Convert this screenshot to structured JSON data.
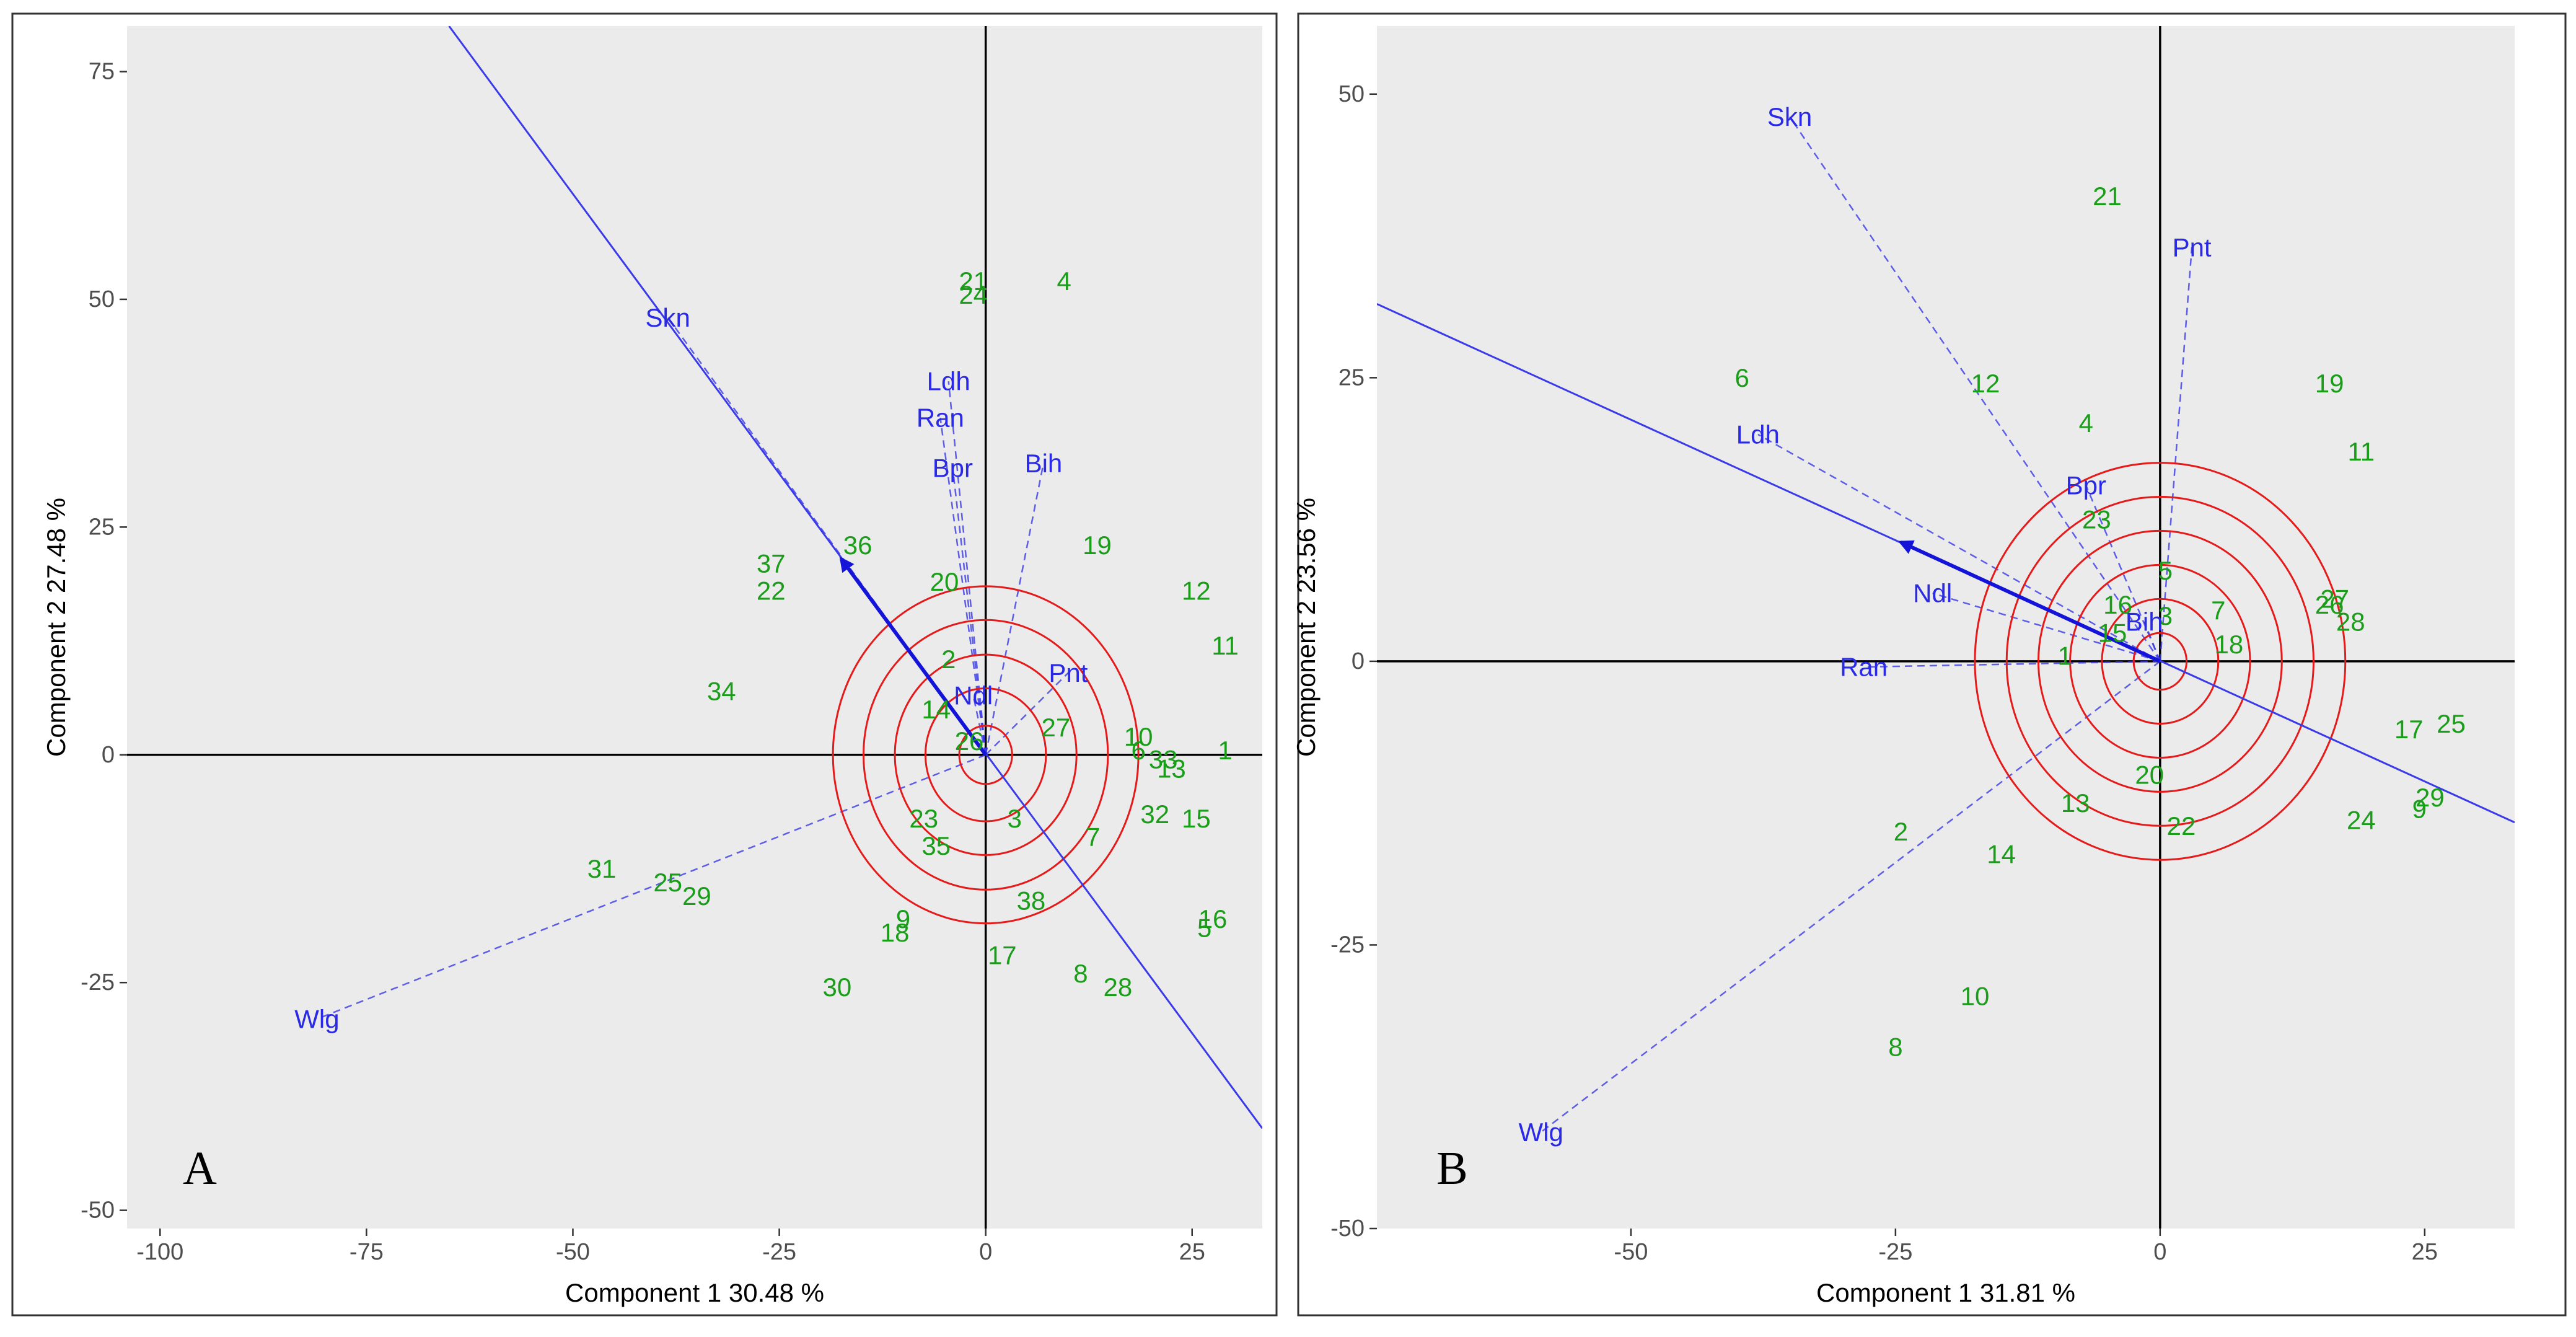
{
  "colors": {
    "panel_bg": "#ebebeb",
    "genotype": "#1a9e1a",
    "trait": "#2a2ae6",
    "vector_line": "#3a3ae8",
    "arrow": "#1414d8",
    "circle": "#e51a1a",
    "axis": "#000000",
    "frame": "#333333",
    "tick_text": "#4d4d4d"
  },
  "chart_data": [
    {
      "type": "scatter",
      "panel_label": "A",
      "xlabel": "Component 1 30.48 %",
      "ylabel": "Component 2 27.48 %",
      "xlim": [
        -104,
        33.5
      ],
      "ylim": [
        -52,
        80
      ],
      "xticks": [
        -100,
        -75,
        -50,
        -25,
        0,
        25
      ],
      "xtick_labels": [
        "-100",
        "-75",
        "-50",
        "-25",
        "0",
        "25"
      ],
      "yticks": [
        -50,
        -25,
        0,
        25,
        50,
        75
      ],
      "ytick_labels": [
        "-50",
        "-25",
        "0",
        "25",
        "50",
        "75"
      ],
      "axis_line": {
        "p1": [
          -65,
          80
        ],
        "p2": [
          33.5,
          -41
        ]
      },
      "arrow": {
        "from": [
          0,
          0
        ],
        "to": [
          -17.5,
          21.5
        ]
      },
      "circles": {
        "center": [
          0,
          0
        ],
        "radii": [
          3.2,
          7.3,
          11,
          14.8,
          18.5
        ]
      },
      "genotypes": [
        {
          "label": "1",
          "x": 29,
          "y": 0.5
        },
        {
          "label": "2",
          "x": -4.5,
          "y": 10.5
        },
        {
          "label": "3",
          "x": 3.5,
          "y": -7
        },
        {
          "label": "4",
          "x": 9.5,
          "y": 52
        },
        {
          "label": "5",
          "x": 26.5,
          "y": -19
        },
        {
          "label": "6",
          "x": 18.5,
          "y": 0.5
        },
        {
          "label": "7",
          "x": 13,
          "y": -9
        },
        {
          "label": "8",
          "x": 11.5,
          "y": -24
        },
        {
          "label": "9",
          "x": -10,
          "y": -18
        },
        {
          "label": "10",
          "x": 18.5,
          "y": 2
        },
        {
          "label": "11",
          "x": 29,
          "y": 12
        },
        {
          "label": "12",
          "x": 25.5,
          "y": 18
        },
        {
          "label": "13",
          "x": 22.5,
          "y": -1.5
        },
        {
          "label": "14",
          "x": -6,
          "y": 5
        },
        {
          "label": "15",
          "x": 25.5,
          "y": -7
        },
        {
          "label": "16",
          "x": 27.5,
          "y": -18
        },
        {
          "label": "17",
          "x": 2,
          "y": -22
        },
        {
          "label": "18",
          "x": -11,
          "y": -19.5
        },
        {
          "label": "19",
          "x": 13.5,
          "y": 23
        },
        {
          "label": "20",
          "x": -5,
          "y": 19
        },
        {
          "label": "21",
          "x": -1.5,
          "y": 52
        },
        {
          "label": "22",
          "x": -26,
          "y": 18
        },
        {
          "label": "23",
          "x": -7.5,
          "y": -7
        },
        {
          "label": "24",
          "x": -1.5,
          "y": 50.5
        },
        {
          "label": "25",
          "x": -38.5,
          "y": -14
        },
        {
          "label": "27",
          "x": 8.5,
          "y": 3
        },
        {
          "label": "28",
          "x": 16,
          "y": -25.5
        },
        {
          "label": "29",
          "x": -35,
          "y": -15.5
        },
        {
          "label": "30",
          "x": -18,
          "y": -25.5
        },
        {
          "label": "31",
          "x": -46.5,
          "y": -12.5
        },
        {
          "label": "32",
          "x": 20.5,
          "y": -6.5
        },
        {
          "label": "33",
          "x": 21.5,
          "y": -0.5
        },
        {
          "label": "34",
          "x": -32,
          "y": 7
        },
        {
          "label": "35",
          "x": -6,
          "y": -10
        },
        {
          "label": "36",
          "x": -15.5,
          "y": 23
        },
        {
          "label": "37",
          "x": -26,
          "y": 21
        },
        {
          "label": "38",
          "x": 5.5,
          "y": -16
        },
        {
          "label": "26",
          "x": -2,
          "y": 1.5
        }
      ],
      "traits": [
        {
          "label": "Skn",
          "x": -38.5,
          "y": 48
        },
        {
          "label": "Ldh",
          "x": -4.5,
          "y": 41
        },
        {
          "label": "Ran",
          "x": -5.5,
          "y": 37
        },
        {
          "label": "Bpr",
          "x": -4,
          "y": 31.5
        },
        {
          "label": "Bih",
          "x": 7,
          "y": 32
        },
        {
          "label": "Ndl",
          "x": -1.5,
          "y": 6.5
        },
        {
          "label": "Pnt",
          "x": 10,
          "y": 9
        },
        {
          "label": "Wlg",
          "x": -81,
          "y": -29
        }
      ]
    },
    {
      "type": "scatter",
      "panel_label": "B",
      "xlabel": "Component 1 31.81 %",
      "ylabel": "Component 2 23.56 %",
      "xlim": [
        -74,
        33.5
      ],
      "ylim": [
        -50,
        56
      ],
      "xticks": [
        -50,
        -25,
        0,
        25
      ],
      "xtick_labels": [
        "-50",
        "-25",
        "0",
        "25"
      ],
      "yticks": [
        -50,
        -25,
        0,
        25,
        50
      ],
      "ytick_labels": [
        "-50",
        "-25",
        "0",
        "25",
        "50"
      ],
      "axis_line": {
        "p1": [
          -74,
          31.5
        ],
        "p2": [
          33.5,
          -14.2
        ]
      },
      "arrow": {
        "from": [
          0,
          0
        ],
        "to": [
          -24.5,
          10.5
        ]
      },
      "circles": {
        "center": [
          0,
          0
        ],
        "radii": [
          2.5,
          5.5,
          8.5,
          11.5,
          14.5,
          17.5
        ]
      },
      "genotypes": [
        {
          "label": "1",
          "x": -9,
          "y": 0.5
        },
        {
          "label": "2",
          "x": -24.5,
          "y": -15
        },
        {
          "label": "4",
          "x": -7,
          "y": 21
        },
        {
          "label": "5",
          "x": 0.5,
          "y": 8
        },
        {
          "label": "6",
          "x": -39.5,
          "y": 25
        },
        {
          "label": "7",
          "x": 5.5,
          "y": 4.5
        },
        {
          "label": "8",
          "x": -25,
          "y": -34
        },
        {
          "label": "9",
          "x": 24.5,
          "y": -13
        },
        {
          "label": "10",
          "x": -17.5,
          "y": -29.5
        },
        {
          "label": "11",
          "x": 19,
          "y": 18.5
        },
        {
          "label": "12",
          "x": -16.5,
          "y": 24.5
        },
        {
          "label": "13",
          "x": -8,
          "y": -12.5
        },
        {
          "label": "14",
          "x": -15,
          "y": -17
        },
        {
          "label": "15",
          "x": -4.5,
          "y": 2.5
        },
        {
          "label": "16",
          "x": -4,
          "y": 5
        },
        {
          "label": "17",
          "x": 23.5,
          "y": -6
        },
        {
          "label": "18",
          "x": 6.5,
          "y": 1.5
        },
        {
          "label": "19",
          "x": 16,
          "y": 24.5
        },
        {
          "label": "20",
          "x": -1,
          "y": -10
        },
        {
          "label": "21",
          "x": -5,
          "y": 41
        },
        {
          "label": "22",
          "x": 2,
          "y": -14.5
        },
        {
          "label": "23",
          "x": -6,
          "y": 12.5
        },
        {
          "label": "24",
          "x": 19,
          "y": -14
        },
        {
          "label": "25",
          "x": 27.5,
          "y": -5.5
        },
        {
          "label": "26",
          "x": 16,
          "y": 5
        },
        {
          "label": "27",
          "x": 16.5,
          "y": 5.5
        },
        {
          "label": "28",
          "x": 18,
          "y": 3.5
        },
        {
          "label": "29",
          "x": 25.5,
          "y": -12
        },
        {
          "label": "3",
          "x": 0.5,
          "y": 4
        }
      ],
      "traits": [
        {
          "label": "Skn",
          "x": -35,
          "y": 48
        },
        {
          "label": "Pnt",
          "x": 3,
          "y": 36.5
        },
        {
          "label": "Ldh",
          "x": -38,
          "y": 20
        },
        {
          "label": "Bpr",
          "x": -7,
          "y": 15.5
        },
        {
          "label": "Ndl",
          "x": -21.5,
          "y": 6
        },
        {
          "label": "Bih",
          "x": -1.5,
          "y": 3.5
        },
        {
          "label": "Ran",
          "x": -28,
          "y": -0.5
        },
        {
          "label": "Wlg",
          "x": -58.5,
          "y": -41.5
        }
      ]
    }
  ]
}
